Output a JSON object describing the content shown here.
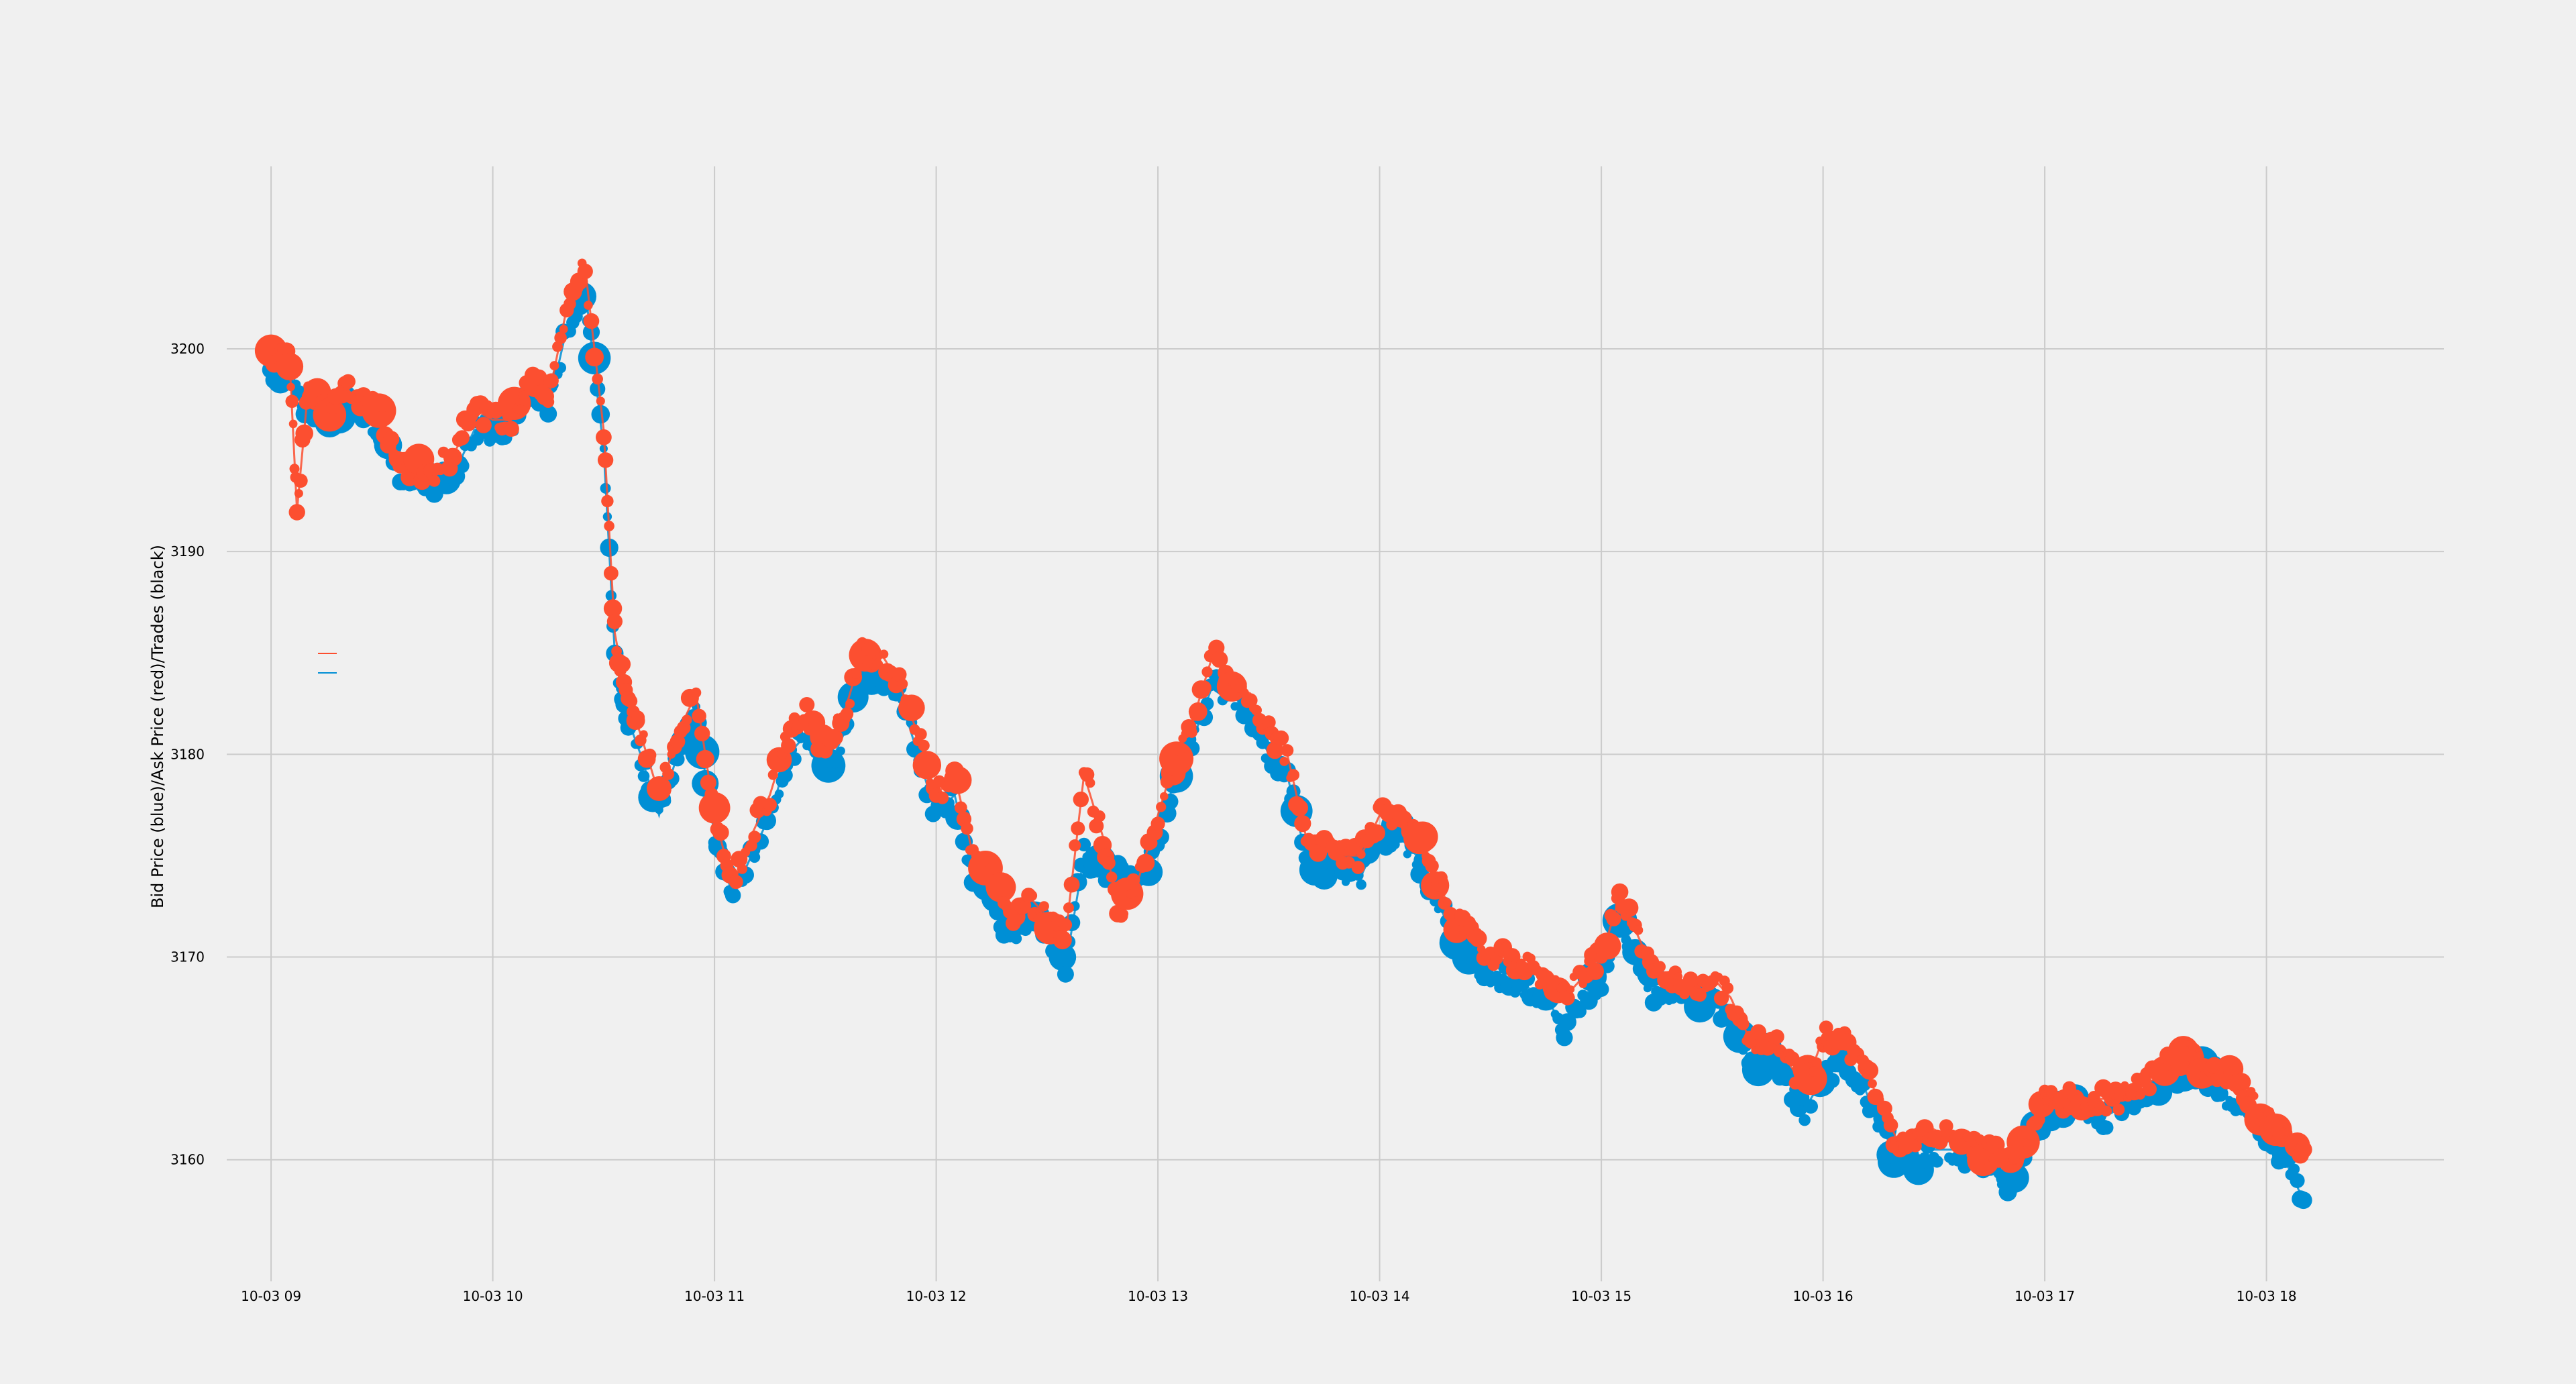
{
  "chart_data": {
    "type": "scatter",
    "title": "",
    "ylabel": "Bid Price (blue)/Ask Price (red)/Trades (black)",
    "xlabel": "",
    "grid": true,
    "legend": "none",
    "x_range": [
      "10-03 08:48",
      "10-03 18:48"
    ],
    "ylim": [
      3154,
      3209
    ],
    "x_ticks": [
      "10-03 09",
      "10-03 10",
      "10-03 11",
      "10-03 12",
      "10-03 13",
      "10-03 14",
      "10-03 15",
      "10-03 16",
      "10-03 17",
      "10-03 18"
    ],
    "y_ticks": [
      3160,
      3170,
      3180,
      3190,
      3200
    ],
    "colors": {
      "bid": "#008fd5",
      "ask": "#fc4f30",
      "trades": "#000000",
      "grid": "#cbcbcb",
      "background": "#f0f0f0"
    },
    "series": [
      {
        "name": "Bid",
        "color": "#008fd5",
        "points": [
          [
            "09:00",
            3198.5
          ],
          [
            "09:05",
            3199
          ],
          [
            "09:10",
            3197
          ],
          [
            "09:15",
            3196
          ],
          [
            "09:20",
            3197.5
          ],
          [
            "09:25",
            3197
          ],
          [
            "09:30",
            3196
          ],
          [
            "09:35",
            3194
          ],
          [
            "09:40",
            3193
          ],
          [
            "09:45",
            3193.5
          ],
          [
            "09:50",
            3194
          ],
          [
            "09:55",
            3196
          ],
          [
            "10:00",
            3196
          ],
          [
            "10:05",
            3196
          ],
          [
            "10:10",
            3198
          ],
          [
            "10:15",
            3197
          ],
          [
            "10:20",
            3201
          ],
          [
            "10:25",
            3203
          ],
          [
            "10:30",
            3195
          ],
          [
            "10:33",
            3185
          ],
          [
            "10:36",
            3182
          ],
          [
            "10:40",
            3180
          ],
          [
            "10:45",
            3177
          ],
          [
            "10:50",
            3180
          ],
          [
            "10:55",
            3182
          ],
          [
            "11:00",
            3176
          ],
          [
            "11:05",
            3173
          ],
          [
            "11:10",
            3175
          ],
          [
            "11:15",
            3177
          ],
          [
            "11:20",
            3180
          ],
          [
            "11:25",
            3181
          ],
          [
            "11:30",
            3179
          ],
          [
            "11:35",
            3181
          ],
          [
            "11:40",
            3184
          ],
          [
            "11:45",
            3184
          ],
          [
            "11:50",
            3183
          ],
          [
            "11:55",
            3180
          ],
          [
            "12:00",
            3177
          ],
          [
            "12:05",
            3178
          ],
          [
            "12:10",
            3174
          ],
          [
            "12:15",
            3173
          ],
          [
            "12:20",
            3171
          ],
          [
            "12:25",
            3172
          ],
          [
            "12:30",
            3171
          ],
          [
            "12:35",
            3169.5
          ],
          [
            "12:40",
            3175
          ],
          [
            "12:45",
            3174
          ],
          [
            "12:50",
            3174
          ],
          [
            "12:55",
            3173.5
          ],
          [
            "13:00",
            3176
          ],
          [
            "13:05",
            3179
          ],
          [
            "13:10",
            3181
          ],
          [
            "13:15",
            3183.5
          ],
          [
            "13:20",
            3183
          ],
          [
            "13:25",
            3182
          ],
          [
            "13:30",
            3180
          ],
          [
            "13:35",
            3179
          ],
          [
            "13:40",
            3175
          ],
          [
            "13:45",
            3174.5
          ],
          [
            "13:50",
            3174
          ],
          [
            "13:55",
            3174
          ],
          [
            "14:00",
            3176
          ],
          [
            "14:05",
            3176
          ],
          [
            "14:10",
            3175
          ],
          [
            "14:15",
            3173
          ],
          [
            "14:20",
            3171
          ],
          [
            "14:25",
            3170
          ],
          [
            "14:30",
            3169
          ],
          [
            "14:35",
            3169
          ],
          [
            "14:40",
            3168.5
          ],
          [
            "14:45",
            3168
          ],
          [
            "14:50",
            3166.5
          ],
          [
            "14:55",
            3168
          ],
          [
            "15:00",
            3169
          ],
          [
            "15:05",
            3172
          ],
          [
            "15:10",
            3170
          ],
          [
            "15:15",
            3168
          ],
          [
            "15:20",
            3168
          ],
          [
            "15:25",
            3168
          ],
          [
            "15:30",
            3168
          ],
          [
            "15:35",
            3167
          ],
          [
            "15:40",
            3165
          ],
          [
            "15:45",
            3165
          ],
          [
            "15:50",
            3164
          ],
          [
            "15:55",
            3162.5
          ],
          [
            "16:00",
            3164
          ],
          [
            "16:05",
            3165
          ],
          [
            "16:10",
            3164
          ],
          [
            "16:15",
            3162
          ],
          [
            "16:20",
            3160
          ],
          [
            "16:25",
            3160
          ],
          [
            "16:30",
            3160.5
          ],
          [
            "16:35",
            3160.5
          ],
          [
            "16:40",
            3160
          ],
          [
            "16:45",
            3160
          ],
          [
            "16:50",
            3159
          ],
          [
            "16:55",
            3160.5
          ],
          [
            "17:00",
            3162
          ],
          [
            "17:05",
            3162.5
          ],
          [
            "17:10",
            3162.5
          ],
          [
            "17:15",
            3162
          ],
          [
            "17:20",
            3162.5
          ],
          [
            "17:25",
            3163
          ],
          [
            "17:30",
            3163.5
          ],
          [
            "17:35",
            3164
          ],
          [
            "17:40",
            3164.5
          ],
          [
            "17:45",
            3164
          ],
          [
            "17:50",
            3163
          ],
          [
            "17:55",
            3162
          ],
          [
            "18:00",
            3161
          ],
          [
            "18:05",
            3160
          ],
          [
            "18:10",
            3158
          ]
        ]
      },
      {
        "name": "Ask",
        "color": "#fc4f30",
        "points": [
          [
            "09:00",
            3199.5
          ],
          [
            "09:05",
            3199.5
          ],
          [
            "09:07",
            3192
          ],
          [
            "09:10",
            3198
          ],
          [
            "09:15",
            3197
          ],
          [
            "09:20",
            3198
          ],
          [
            "09:25",
            3197.5
          ],
          [
            "09:30",
            3196.5
          ],
          [
            "09:35",
            3194.5
          ],
          [
            "09:40",
            3194
          ],
          [
            "09:45",
            3194
          ],
          [
            "09:50",
            3195
          ],
          [
            "09:55",
            3197
          ],
          [
            "10:00",
            3196.5
          ],
          [
            "10:05",
            3196.5
          ],
          [
            "10:10",
            3198.5
          ],
          [
            "10:15",
            3197.5
          ],
          [
            "10:20",
            3202
          ],
          [
            "10:25",
            3204
          ],
          [
            "10:30",
            3196
          ],
          [
            "10:33",
            3186
          ],
          [
            "10:36",
            3183
          ],
          [
            "10:40",
            3181
          ],
          [
            "10:45",
            3178
          ],
          [
            "10:50",
            3181
          ],
          [
            "10:55",
            3183
          ],
          [
            "11:00",
            3177
          ],
          [
            "11:05",
            3173.5
          ],
          [
            "11:10",
            3176
          ],
          [
            "11:15",
            3178
          ],
          [
            "11:20",
            3181
          ],
          [
            "11:25",
            3182
          ],
          [
            "11:30",
            3180
          ],
          [
            "11:35",
            3182
          ],
          [
            "11:40",
            3185
          ],
          [
            "11:45",
            3185
          ],
          [
            "11:50",
            3183.5
          ],
          [
            "11:55",
            3181
          ],
          [
            "12:00",
            3178
          ],
          [
            "12:05",
            3179
          ],
          [
            "12:10",
            3175
          ],
          [
            "12:15",
            3174
          ],
          [
            "12:20",
            3172
          ],
          [
            "12:25",
            3173
          ],
          [
            "12:30",
            3172
          ],
          [
            "12:35",
            3171
          ],
          [
            "12:40",
            3179
          ],
          [
            "12:45",
            3176
          ],
          [
            "12:50",
            3172
          ],
          [
            "12:55",
            3174
          ],
          [
            "13:00",
            3177
          ],
          [
            "13:05",
            3180
          ],
          [
            "13:10",
            3182
          ],
          [
            "13:15",
            3185
          ],
          [
            "13:20",
            3183.5
          ],
          [
            "13:25",
            3183
          ],
          [
            "13:30",
            3181
          ],
          [
            "13:35",
            3180
          ],
          [
            "13:40",
            3176
          ],
          [
            "13:45",
            3175.5
          ],
          [
            "13:50",
            3175
          ],
          [
            "13:55",
            3175
          ],
          [
            "14:00",
            3177
          ],
          [
            "14:05",
            3176.5
          ],
          [
            "14:10",
            3176
          ],
          [
            "14:15",
            3174
          ],
          [
            "14:20",
            3172
          ],
          [
            "14:25",
            3171
          ],
          [
            "14:30",
            3170
          ],
          [
            "14:35",
            3170
          ],
          [
            "14:40",
            3169.5
          ],
          [
            "14:45",
            3169
          ],
          [
            "14:50",
            3168
          ],
          [
            "14:55",
            3169
          ],
          [
            "15:00",
            3170
          ],
          [
            "15:05",
            3173
          ],
          [
            "15:10",
            3171
          ],
          [
            "15:15",
            3169
          ],
          [
            "15:20",
            3169
          ],
          [
            "15:25",
            3168.5
          ],
          [
            "15:30",
            3169
          ],
          [
            "15:35",
            3168
          ],
          [
            "15:40",
            3166
          ],
          [
            "15:45",
            3166
          ],
          [
            "15:50",
            3165
          ],
          [
            "15:55",
            3163.5
          ],
          [
            "16:00",
            3166
          ],
          [
            "16:05",
            3166
          ],
          [
            "16:10",
            3165
          ],
          [
            "16:15",
            3163
          ],
          [
            "16:20",
            3161
          ],
          [
            "16:25",
            3161
          ],
          [
            "16:30",
            3161.5
          ],
          [
            "16:35",
            3161
          ],
          [
            "16:40",
            3160.5
          ],
          [
            "16:45",
            3160.5
          ],
          [
            "16:50",
            3160
          ],
          [
            "16:55",
            3161
          ],
          [
            "17:00",
            3163
          ],
          [
            "17:05",
            3163
          ],
          [
            "17:10",
            3163
          ],
          [
            "17:15",
            3163
          ],
          [
            "17:20",
            3163
          ],
          [
            "17:25",
            3163.5
          ],
          [
            "17:30",
            3164
          ],
          [
            "17:35",
            3165
          ],
          [
            "17:40",
            3165
          ],
          [
            "17:45",
            3164.5
          ],
          [
            "17:50",
            3164
          ],
          [
            "17:55",
            3163
          ],
          [
            "18:00",
            3162
          ],
          [
            "18:05",
            3161
          ],
          [
            "18:10",
            3160.5
          ]
        ]
      }
    ]
  }
}
